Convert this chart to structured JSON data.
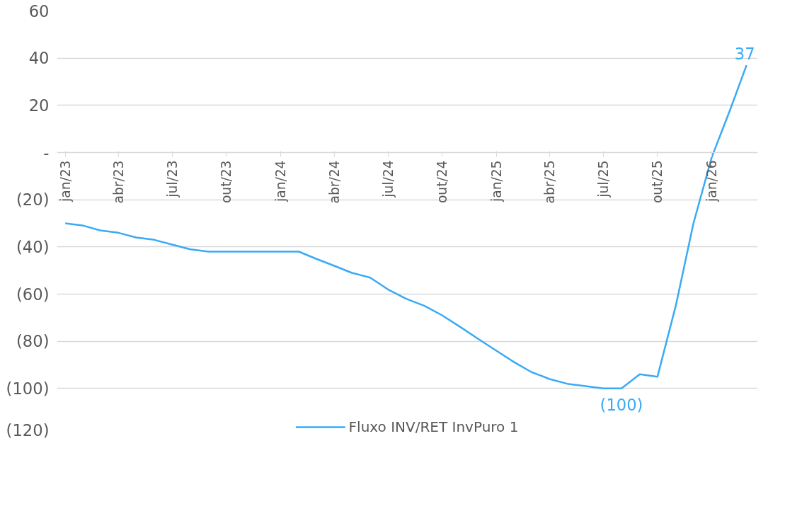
{
  "chart_data": {
    "type": "line",
    "x": [
      "2023-01",
      "2023-02",
      "2023-03",
      "2023-04",
      "2023-05",
      "2023-06",
      "2023-07",
      "2023-08",
      "2023-09",
      "2023-10",
      "2023-11",
      "2023-12",
      "2024-01",
      "2024-02",
      "2024-03",
      "2024-04",
      "2024-05",
      "2024-06",
      "2024-07",
      "2024-08",
      "2024-09",
      "2024-10",
      "2024-11",
      "2024-12",
      "2025-01",
      "2025-02",
      "2025-03",
      "2025-04",
      "2025-05",
      "2025-06",
      "2025-07",
      "2025-08",
      "2025-09",
      "2025-10",
      "2025-11",
      "2025-12",
      "2026-01",
      "2026-02",
      "2026-03"
    ],
    "series": [
      {
        "name": "Fluxo INV/RET InvPuro 1",
        "color": "#3aaaf5",
        "values": [
          -30,
          -31,
          -33,
          -34,
          -36,
          -37,
          -39,
          -41,
          -42,
          -42,
          -42,
          -42,
          -42,
          -42,
          -45,
          -48,
          -51,
          -53,
          -58,
          -62,
          -65,
          -69,
          -74,
          -79,
          -84,
          -89,
          -93,
          -96,
          -98,
          -99,
          -100,
          -100,
          -94,
          -95,
          -65,
          -30,
          -2,
          18,
          37
        ],
        "value_labels": [
          null,
          null,
          null,
          null,
          null,
          null,
          null,
          null,
          null,
          null,
          null,
          null,
          null,
          null,
          null,
          null,
          null,
          null,
          null,
          null,
          null,
          null,
          null,
          null,
          null,
          null,
          null,
          null,
          null,
          null,
          null,
          "(100)",
          null,
          null,
          null,
          null,
          null,
          null,
          "37"
        ]
      }
    ],
    "xlim": [
      "2022-12-18",
      "2026-03-20"
    ],
    "xticks": [
      {
        "value": "2023-01",
        "label": "jan/23"
      },
      {
        "value": "2023-04",
        "label": "abr/23"
      },
      {
        "value": "2023-07",
        "label": "jul/23"
      },
      {
        "value": "2023-10",
        "label": "out/23"
      },
      {
        "value": "2024-01",
        "label": "jan/24"
      },
      {
        "value": "2024-04",
        "label": "abr/24"
      },
      {
        "value": "2024-07",
        "label": "jul/24"
      },
      {
        "value": "2024-10",
        "label": "out/24"
      },
      {
        "value": "2025-01",
        "label": "jan/25"
      },
      {
        "value": "2025-04",
        "label": "abr/25"
      },
      {
        "value": "2025-07",
        "label": "jul/25"
      },
      {
        "value": "2025-10",
        "label": "out/25"
      },
      {
        "value": "2026-01",
        "label": "jan/26"
      }
    ],
    "ylim": [
      -120,
      60
    ],
    "yticks": [
      {
        "value": -120,
        "label": "(120)"
      },
      {
        "value": -100,
        "label": "(100)"
      },
      {
        "value": -80,
        "label": "(80)"
      },
      {
        "value": -60,
        "label": "(60)"
      },
      {
        "value": -40,
        "label": "(40)"
      },
      {
        "value": -20,
        "label": "(20)"
      },
      {
        "value": 0,
        "label": "-"
      },
      20,
      40,
      60
    ],
    "grid": "y",
    "legend": "bottom",
    "marker": "none",
    "line_style": "solid"
  }
}
